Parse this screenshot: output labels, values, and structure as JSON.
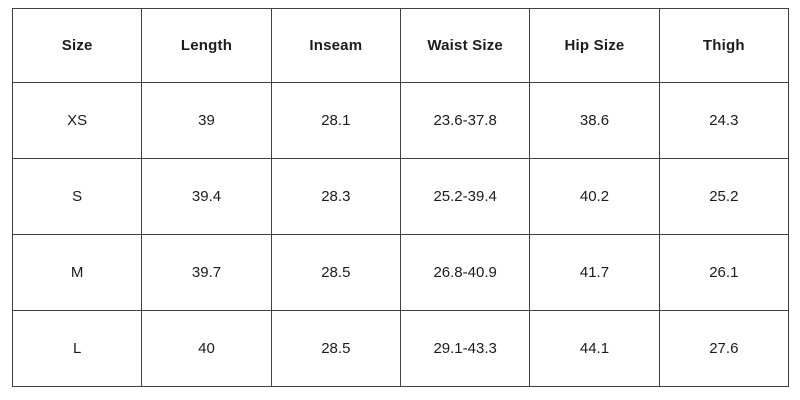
{
  "table": {
    "columns": [
      "Size",
      "Length",
      "Inseam",
      "Waist Size",
      "Hip Size",
      "Thigh"
    ],
    "rows": [
      {
        "cells": [
          "XS",
          "39",
          "28.1",
          "23.6-37.8",
          "38.6",
          "24.3"
        ]
      },
      {
        "cells": [
          "S",
          "39.4",
          "28.3",
          "25.2-39.4",
          "40.2",
          "25.2"
        ]
      },
      {
        "cells": [
          "M",
          "39.7",
          "28.5",
          "26.8-40.9",
          "41.7",
          "26.1"
        ]
      },
      {
        "cells": [
          "L",
          "40",
          "28.5",
          "29.1-43.3",
          "44.1",
          "27.6"
        ]
      }
    ]
  },
  "colors": {
    "background": "#ffffff",
    "border": "#414141",
    "text": "#1c1c1c"
  },
  "chart_data": {
    "type": "table",
    "title": "",
    "columns": [
      "Size",
      "Length",
      "Inseam",
      "Waist Size",
      "Hip Size",
      "Thigh"
    ],
    "rows": [
      [
        "XS",
        39,
        28.1,
        "23.6-37.8",
        38.6,
        24.3
      ],
      [
        "S",
        39.4,
        28.3,
        "25.2-39.4",
        40.2,
        25.2
      ],
      [
        "M",
        39.7,
        28.5,
        "26.8-40.9",
        41.7,
        26.1
      ],
      [
        "L",
        40,
        28.5,
        "29.1-43.3",
        44.1,
        27.6
      ]
    ]
  }
}
